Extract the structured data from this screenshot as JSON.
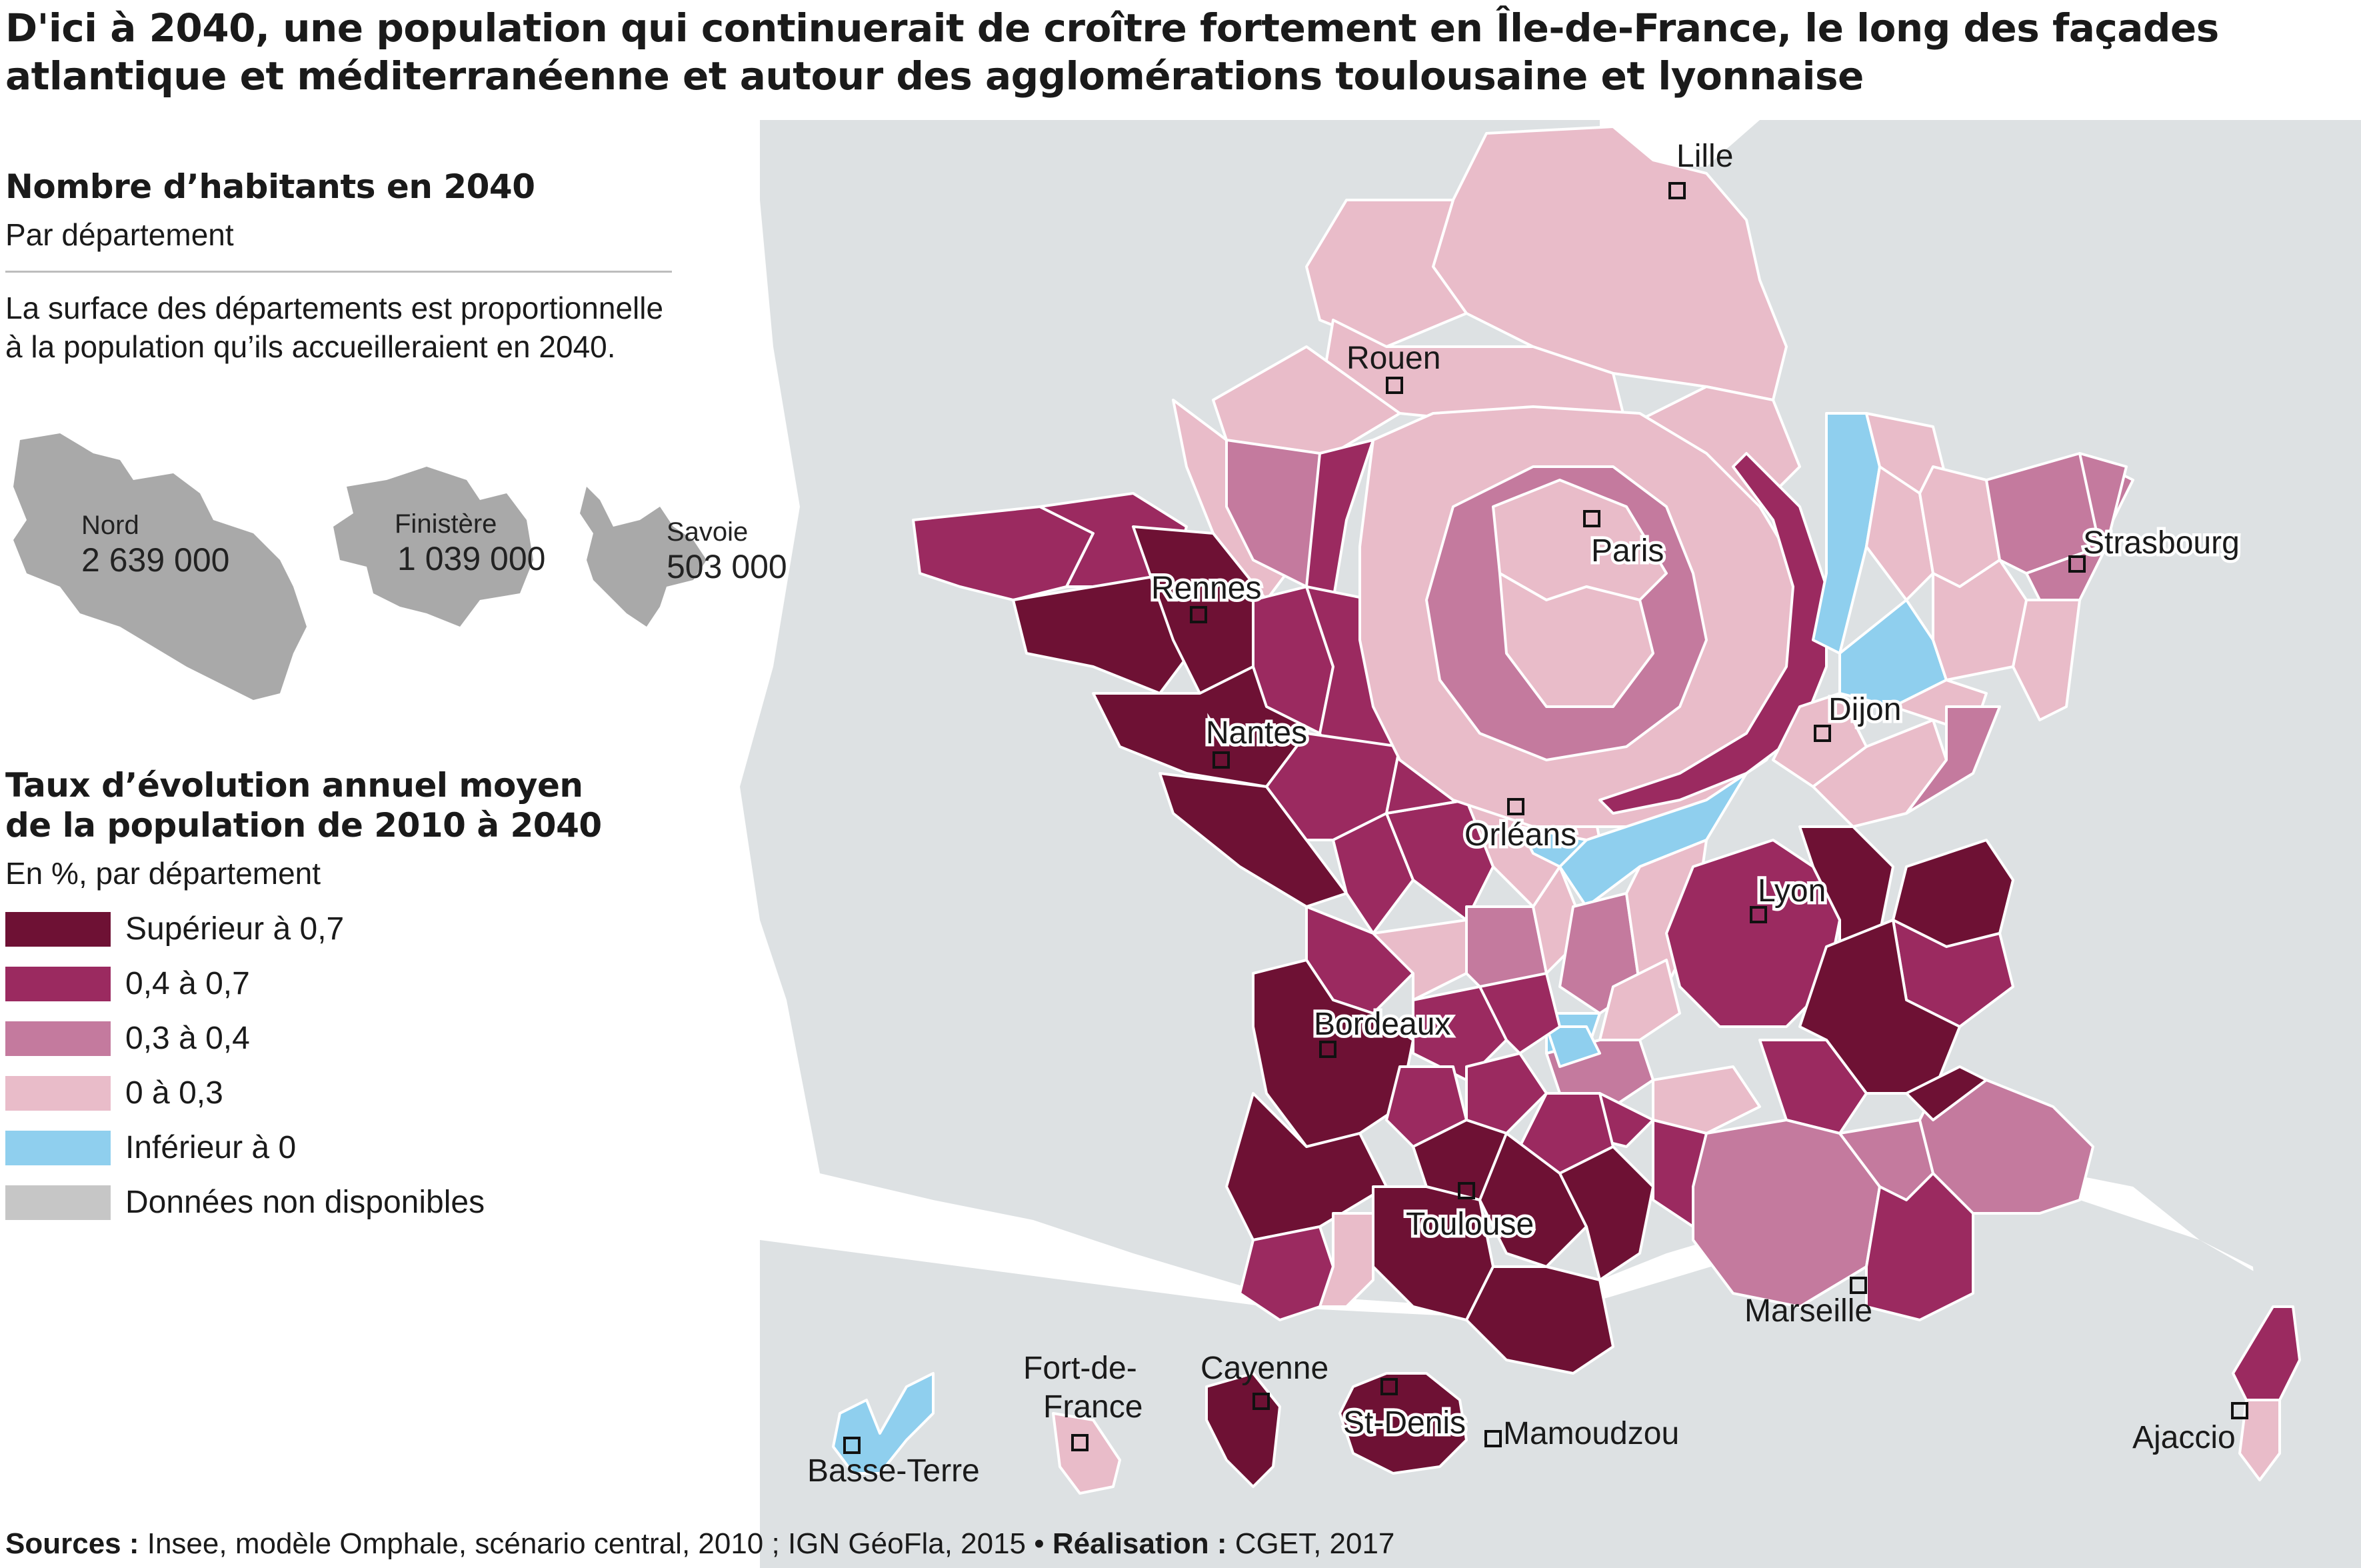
{
  "title": {
    "line1": "D'ici à 2040, une population qui continuerait de croître fortement en Île-de-France, le long des façades",
    "line2": "atlantique et méditerranéenne et autour des agglomérations toulousaine et lyonnaise"
  },
  "size_legend": {
    "heading": "Nombre d’habitants en 2040",
    "subheading": "Par département",
    "note_line1": "La surface des départements est proportionnelle",
    "note_line2": "à la population qu’ils accueilleraient en 2040.",
    "examples": [
      {
        "name": "Nord",
        "value": "2 639 000"
      },
      {
        "name": "Finistère",
        "value": "1 039 000"
      },
      {
        "name": "Savoie",
        "value": "503 000"
      }
    ]
  },
  "color_legend": {
    "heading_line1": "Taux d’évolution annuel moyen",
    "heading_line2": "de la population de 2010 à 2040",
    "subheading": "En %, par département",
    "classes": [
      {
        "label": "Supérieur à 0,7",
        "color": "#6e1134"
      },
      {
        "label": "0,4 à 0,7",
        "color": "#9b2a60"
      },
      {
        "label": "0,3 à 0,4",
        "color": "#c47a9e"
      },
      {
        "label": "0 à 0,3",
        "color": "#e9bcc9"
      },
      {
        "label": "Inférieur à 0",
        "color": "#8fcfee"
      },
      {
        "label": "Données non disponibles",
        "color": "#c6c6c6"
      }
    ]
  },
  "cities": {
    "lille": "Lille",
    "rouen": "Rouen",
    "paris": "Paris",
    "strasbourg": "Strasbourg",
    "rennes": "Rennes",
    "nantes": "Nantes",
    "dijon": "Dijon",
    "orleans": "Orléans",
    "lyon": "Lyon",
    "bordeaux": "Bordeaux",
    "toulouse": "Toulouse",
    "marseille": "Marseille",
    "ajaccio": "Ajaccio",
    "basse_terre": "Basse-Terre",
    "fort_de_france_1": "Fort-de-",
    "fort_de_france_2": "France",
    "cayenne": "Cayenne",
    "st_denis": "St-Denis",
    "mamoudzou": "Mamoudzou"
  },
  "source": {
    "sources_label": "Sources :",
    "sources_text": " Insee, modèle Omphale, scénario central, 2010 ; IGN GéoFla, 2015 • ",
    "realisation_label": "Réalisation :",
    "realisation_text": " CGET, 2017"
  }
}
